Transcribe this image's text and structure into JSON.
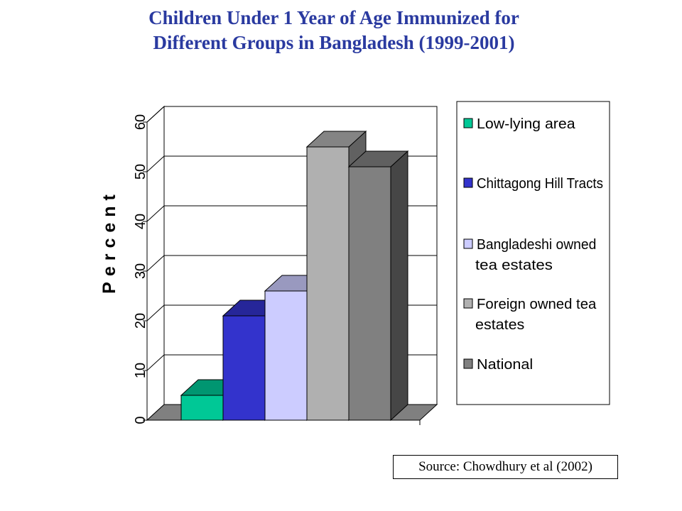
{
  "title_line1": "Children Under 1 Year of Age Immunized for",
  "title_line2": "Different Groups in Bangladesh (1999-2001)",
  "source": "Source: Chowdhury et al (2002)",
  "chart_data": {
    "type": "bar",
    "title": "Children Under 1 Year of Age Immunized for Different Groups in Bangladesh (1999-2001)",
    "xlabel": "",
    "ylabel": "Percent",
    "ylim": [
      0,
      60
    ],
    "yticks": [
      0,
      10,
      20,
      30,
      40,
      50,
      60
    ],
    "grid": true,
    "legend": "right",
    "series": [
      {
        "name": "Low-lying area",
        "value": 5,
        "color": "#00c896"
      },
      {
        "name": "Chittagong Hill Tracts",
        "value": 21,
        "color": "#3333cc"
      },
      {
        "name": "Bangladeshi owned tea estates",
        "legend_lines": [
          "Bangladeshi owned",
          "tea estates"
        ],
        "value": 26,
        "color": "#ccccff"
      },
      {
        "name": "Foreign owned tea estates",
        "legend_lines": [
          "Foreign owned tea",
          "estates"
        ],
        "value": 55,
        "color": "#b0b0b0"
      },
      {
        "name": "National",
        "value": 51,
        "color": "#808080"
      }
    ]
  }
}
